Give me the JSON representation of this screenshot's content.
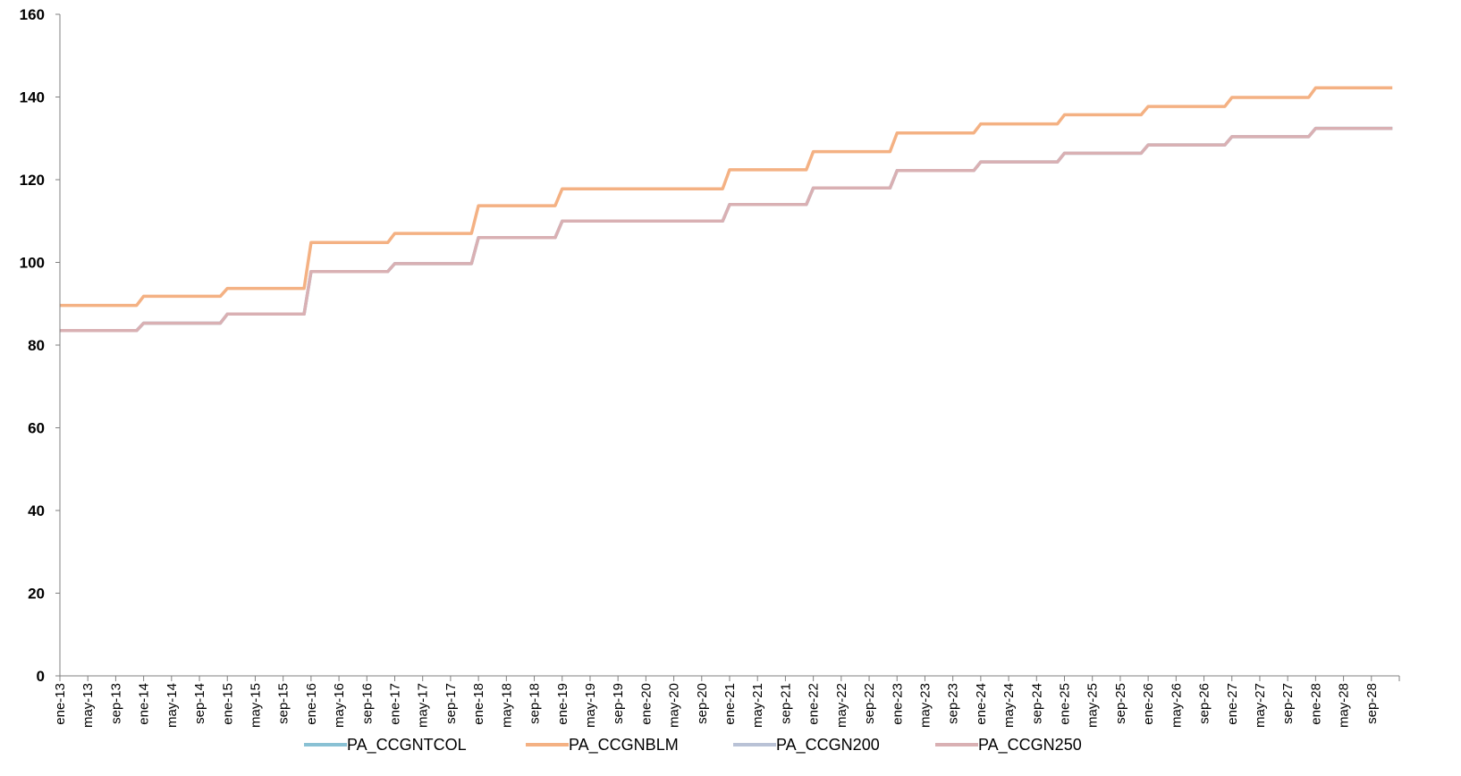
{
  "chart_data": {
    "type": "line",
    "title": "",
    "xlabel": "",
    "ylabel": "",
    "ylim": [
      0,
      160
    ],
    "yticks": [
      "0",
      "20",
      "40",
      "60",
      "80",
      "100",
      "120",
      "140",
      "160"
    ],
    "x_tick_labels": [
      "ene-13",
      "may-13",
      "sep-13",
      "ene-14",
      "may-14",
      "sep-14",
      "ene-15",
      "may-15",
      "sep-15",
      "ene-16",
      "may-16",
      "sep-16",
      "ene-17",
      "may-17",
      "sep-17",
      "ene-18",
      "may-18",
      "sep-18",
      "ene-19",
      "may-19",
      "sep-19",
      "ene-20",
      "may-20",
      "sep-20",
      "ene-21",
      "may-21",
      "sep-21",
      "ene-22",
      "may-22",
      "sep-22",
      "ene-23",
      "may-23",
      "sep-23",
      "ene-24",
      "may-24",
      "sep-24",
      "ene-25",
      "may-25",
      "sep-25",
      "ene-26",
      "may-26",
      "sep-26",
      "ene-27",
      "may-27",
      "sep-27",
      "ene-28",
      "may-28",
      "sep-28"
    ],
    "x_start": "ene-13",
    "x_end": "dic-28",
    "grid": false,
    "legend_position": "bottom",
    "series": [
      {
        "name": "PA_CCGNTCOL",
        "color": "#89c1d4",
        "yearly_values": [
          83.5,
          85.3,
          87.5,
          97.8,
          99.7,
          106.0,
          110.0,
          110.0,
          114.0,
          118.0,
          122.2,
          124.3,
          126.4,
          128.4,
          130.4,
          132.4
        ]
      },
      {
        "name": "PA_CCGNBLM",
        "color": "#f4b183",
        "yearly_values": [
          89.6,
          91.8,
          93.7,
          104.8,
          107.0,
          113.7,
          117.8,
          117.8,
          122.4,
          126.8,
          131.3,
          133.5,
          135.7,
          137.7,
          139.9,
          142.2
        ]
      },
      {
        "name": "PA_CCGN200",
        "color": "#b9c2d6",
        "yearly_values": [
          83.5,
          85.3,
          87.5,
          97.8,
          99.7,
          106.0,
          110.0,
          110.0,
          114.0,
          118.0,
          122.2,
          124.3,
          126.4,
          128.4,
          130.4,
          132.4
        ]
      },
      {
        "name": "PA_CCGN250",
        "color": "#d9b0b3",
        "yearly_values": [
          83.5,
          85.3,
          87.5,
          97.8,
          99.7,
          106.0,
          110.0,
          110.0,
          114.0,
          118.0,
          122.2,
          124.3,
          126.4,
          128.4,
          130.4,
          132.4
        ]
      }
    ]
  }
}
